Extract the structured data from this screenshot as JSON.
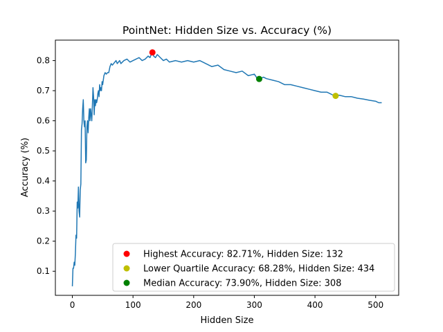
{
  "chart_data": {
    "type": "line",
    "title": "PointNet: Hidden Size vs. Accuracy (%)",
    "xlabel": "Hidden Size",
    "ylabel": "Accuracy (%)",
    "xlim": [
      -28,
      538
    ],
    "ylim": [
      0.02,
      0.868
    ],
    "xticks": [
      0,
      100,
      200,
      300,
      400,
      500
    ],
    "xtick_labels": [
      "0",
      "100",
      "200",
      "300",
      "400",
      "500"
    ],
    "yticks": [
      0.1,
      0.2,
      0.3,
      0.4,
      0.5,
      0.6,
      0.7,
      0.8
    ],
    "ytick_labels": [
      "0.1",
      "0.2",
      "0.3",
      "0.4",
      "0.5",
      "0.6",
      "0.7",
      "0.8"
    ],
    "grid": false,
    "legend_position": "lower-right",
    "line_color": "#1f77b4",
    "series": [
      {
        "x": [
          0,
          1,
          2,
          3,
          4,
          5,
          6,
          7,
          8,
          9,
          10,
          11,
          12,
          13,
          14,
          15,
          16,
          17,
          18,
          19,
          20,
          21,
          22,
          23,
          24,
          25,
          26,
          27,
          28,
          29,
          30,
          31,
          32,
          33,
          34,
          35,
          36,
          37,
          38,
          39,
          40,
          41,
          42,
          43,
          44,
          45,
          46,
          47,
          48,
          49,
          50,
          52,
          54,
          56,
          58,
          60,
          62,
          64,
          66,
          68,
          70,
          72,
          74,
          76,
          78,
          80,
          85,
          90,
          95,
          100,
          105,
          110,
          115,
          120,
          125,
          128,
          130,
          132,
          134,
          137,
          140,
          145,
          150,
          155,
          160,
          170,
          180,
          190,
          200,
          210,
          220,
          230,
          240,
          250,
          260,
          270,
          280,
          290,
          300,
          305,
          308,
          315,
          320,
          330,
          340,
          350,
          360,
          370,
          380,
          390,
          400,
          410,
          420,
          430,
          434,
          440,
          450,
          460,
          470,
          480,
          490,
          500,
          505,
          510
        ],
        "values": [
          0.05,
          0.11,
          0.11,
          0.13,
          0.12,
          0.16,
          0.22,
          0.21,
          0.33,
          0.31,
          0.38,
          0.3,
          0.28,
          0.37,
          0.39,
          0.57,
          0.59,
          0.64,
          0.67,
          0.6,
          0.58,
          0.6,
          0.46,
          0.47,
          0.58,
          0.6,
          0.56,
          0.61,
          0.64,
          0.6,
          0.64,
          0.62,
          0.6,
          0.65,
          0.71,
          0.68,
          0.62,
          0.67,
          0.65,
          0.67,
          0.66,
          0.67,
          0.69,
          0.7,
          0.68,
          0.72,
          0.7,
          0.71,
          0.7,
          0.73,
          0.72,
          0.75,
          0.76,
          0.755,
          0.76,
          0.76,
          0.78,
          0.79,
          0.785,
          0.79,
          0.795,
          0.8,
          0.79,
          0.795,
          0.8,
          0.79,
          0.8,
          0.805,
          0.795,
          0.8,
          0.805,
          0.81,
          0.8,
          0.805,
          0.815,
          0.81,
          0.82,
          0.827,
          0.815,
          0.81,
          0.82,
          0.81,
          0.8,
          0.805,
          0.795,
          0.8,
          0.795,
          0.8,
          0.795,
          0.8,
          0.79,
          0.78,
          0.785,
          0.77,
          0.765,
          0.76,
          0.765,
          0.75,
          0.755,
          0.74,
          0.739,
          0.745,
          0.74,
          0.735,
          0.73,
          0.72,
          0.72,
          0.715,
          0.71,
          0.705,
          0.7,
          0.695,
          0.695,
          0.685,
          0.683,
          0.685,
          0.68,
          0.68,
          0.675,
          0.672,
          0.668,
          0.665,
          0.66,
          0.66
        ]
      }
    ],
    "markers": [
      {
        "label": "Highest Accuracy: 82.71%, Hidden Size: 132",
        "x": 132,
        "y": 0.8271,
        "color": "#ff0000"
      },
      {
        "label": "Lower Quartile Accuracy: 68.28%, Hidden Size: 434",
        "x": 434,
        "y": 0.6828,
        "color": "#bfbf00"
      },
      {
        "label": "Median Accuracy: 73.90%, Hidden Size: 308",
        "x": 308,
        "y": 0.739,
        "color": "#008000"
      }
    ]
  }
}
